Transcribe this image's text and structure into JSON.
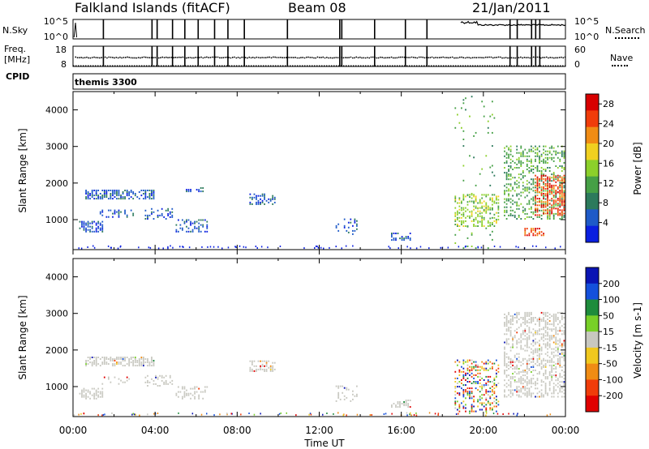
{
  "header": {
    "station": "Falkland Islands (fitACF)",
    "beam": "Beam 08",
    "date": "21/Jan/2011"
  },
  "left_labels": {
    "nsky": "N.Sky",
    "freq": "Freq.",
    "freq_unit": "[MHz]",
    "cpid": "CPID"
  },
  "right_labels": {
    "nsearch": "N.Search",
    "nave": "Nave"
  },
  "cpid_value": "themis 3300",
  "colors": {
    "p1": "#0a1fe0",
    "p2": "#1e5ac8",
    "p3": "#2c7a5c",
    "p4": "#46a046",
    "p5": "#8cd02a",
    "p6": "#f0d020",
    "p7": "#f08c14",
    "p8": "#f03c0a",
    "p9": "#d80000",
    "v1": "#0a14b4",
    "v2": "#1450dc",
    "v3": "#1e8c3c",
    "v4": "#78d028",
    "v5": "#c8c8c0",
    "v6": "#f0c81e",
    "v7": "#f08c14",
    "v8": "#f03c0a",
    "v9": "#e00000"
  },
  "chart_data": [
    {
      "type": "line",
      "name": "N.Sky / N.Search",
      "y_left_ticks": [
        "10^5",
        "10^0"
      ],
      "y_right_ticks": [
        "10^5",
        "10^0"
      ],
      "series": [
        {
          "name": "N.Sky",
          "x": [
            0.0,
            0.3,
            0.33,
            0.35,
            0.4,
            0.45
          ],
          "y": [
            0.1,
            0.9,
            0.1,
            0.7,
            0.6,
            0.4
          ]
        },
        {
          "name": "N.Search",
          "x": [
            19.0,
            20.0,
            21.0,
            22.0,
            23.0,
            24.0
          ],
          "y": [
            4.9,
            4.8,
            4.7,
            4.6,
            4.5,
            4.5
          ]
        }
      ]
    },
    {
      "type": "scatter",
      "name": "Freq / Nave",
      "y_left_ticks": [
        "18",
        "8"
      ],
      "y_right_ticks": [
        "60",
        "0"
      ],
      "series": [
        {
          "name": "Freq",
          "x": [
            0,
            2,
            4,
            6,
            8,
            10,
            12,
            14,
            16,
            18,
            20,
            22,
            24
          ],
          "y": [
            11,
            11,
            11,
            11,
            11,
            11,
            11,
            11,
            11,
            11,
            11,
            11,
            11
          ]
        },
        {
          "name": "Nave",
          "x": [
            0.2,
            24
          ],
          "y": [
            0,
            0
          ]
        }
      ]
    },
    {
      "type": "heatmap",
      "name": "Power",
      "xlabel": "",
      "ylabel": "Slant Range [km]",
      "x_ticks": [
        "00:00",
        "04:00",
        "08:00",
        "12:00",
        "16:00",
        "20:00",
        "00:00"
      ],
      "y_ticks": [
        "1000",
        "2000",
        "3000",
        "4000"
      ],
      "xlim": [
        0,
        24
      ],
      "ylim": [
        180,
        4500
      ],
      "colorbar": {
        "label": "Power [dB]",
        "ticks": [
          "4",
          "8",
          "12",
          "16",
          "20",
          "24",
          "28"
        ],
        "range": [
          0,
          30
        ]
      },
      "regions": [
        {
          "t": [
            0.6,
            4.0
          ],
          "r": [
            1550,
            1800
          ],
          "dens": 0.6,
          "c": 1
        },
        {
          "t": [
            0.3,
            1.5
          ],
          "r": [
            650,
            950
          ],
          "dens": 0.55,
          "c": 1
        },
        {
          "t": [
            1.3,
            3.0
          ],
          "r": [
            1050,
            1250
          ],
          "dens": 0.3,
          "c": 1
        },
        {
          "t": [
            3.5,
            4.8
          ],
          "r": [
            1000,
            1300
          ],
          "dens": 0.4,
          "c": 1
        },
        {
          "t": [
            5.0,
            6.5
          ],
          "r": [
            650,
            1000
          ],
          "dens": 0.35,
          "c": 1
        },
        {
          "t": [
            5.5,
            6.3
          ],
          "r": [
            1750,
            1850
          ],
          "dens": 0.4,
          "c": 1
        },
        {
          "t": [
            8.6,
            9.8
          ],
          "r": [
            1400,
            1700
          ],
          "dens": 0.55,
          "c": 1
        },
        {
          "t": [
            12.8,
            13.8
          ],
          "r": [
            580,
            1000
          ],
          "dens": 0.25,
          "c": 1
        },
        {
          "t": [
            15.5,
            16.5
          ],
          "r": [
            420,
            620
          ],
          "dens": 0.5,
          "c": 1
        },
        {
          "t": [
            18.6,
            20.8
          ],
          "r": [
            800,
            1700
          ],
          "dens": 0.4,
          "c": 4
        },
        {
          "t": [
            18.6,
            20.6
          ],
          "r": [
            200,
            4400
          ],
          "dens": 0.04,
          "c": 3
        },
        {
          "t": [
            21.0,
            24.0
          ],
          "r": [
            1000,
            3000
          ],
          "dens": 0.35,
          "c": 3
        },
        {
          "t": [
            22.5,
            24.0
          ],
          "r": [
            1100,
            2200
          ],
          "dens": 0.5,
          "c": 7
        },
        {
          "t": [
            22.0,
            23.0
          ],
          "r": [
            550,
            750
          ],
          "dens": 0.6,
          "c": 7
        }
      ]
    },
    {
      "type": "heatmap",
      "name": "Velocity",
      "xlabel": "Time UT",
      "ylabel": "Slant Range [km]",
      "x_ticks": [
        "00:00",
        "04:00",
        "08:00",
        "12:00",
        "16:00",
        "20:00",
        "00:00"
      ],
      "y_ticks": [
        "1000",
        "2000",
        "3000",
        "4000"
      ],
      "xlim": [
        0,
        24
      ],
      "ylim": [
        180,
        4500
      ],
      "colorbar": {
        "label": "Velocity [m s-1]",
        "ticks": [
          "200",
          "100",
          "50",
          "15",
          "-15",
          "-50",
          "-100",
          "-200"
        ],
        "range": [
          -250,
          250
        ]
      },
      "regions": [
        {
          "t": [
            0.6,
            4.0
          ],
          "r": [
            1550,
            1800
          ],
          "dens": 0.6,
          "c": 5
        },
        {
          "t": [
            0.3,
            1.5
          ],
          "r": [
            650,
            950
          ],
          "dens": 0.55,
          "c": 5
        },
        {
          "t": [
            1.3,
            3.0
          ],
          "r": [
            1050,
            1250
          ],
          "dens": 0.3,
          "c": 5
        },
        {
          "t": [
            3.5,
            4.8
          ],
          "r": [
            1000,
            1300
          ],
          "dens": 0.4,
          "c": 5
        },
        {
          "t": [
            5.0,
            6.5
          ],
          "r": [
            650,
            1000
          ],
          "dens": 0.35,
          "c": 5
        },
        {
          "t": [
            8.6,
            9.8
          ],
          "r": [
            1400,
            1700
          ],
          "dens": 0.55,
          "c": 5
        },
        {
          "t": [
            12.8,
            13.8
          ],
          "r": [
            580,
            1000
          ],
          "dens": 0.25,
          "c": 5
        },
        {
          "t": [
            15.5,
            16.5
          ],
          "r": [
            420,
            620
          ],
          "dens": 0.5,
          "c": 5
        },
        {
          "t": [
            18.6,
            20.8
          ],
          "r": [
            300,
            1700
          ],
          "dens": 0.35,
          "c": 0
        },
        {
          "t": [
            21.0,
            24.0
          ],
          "r": [
            700,
            3000
          ],
          "dens": 0.45,
          "c": 5
        }
      ]
    }
  ]
}
